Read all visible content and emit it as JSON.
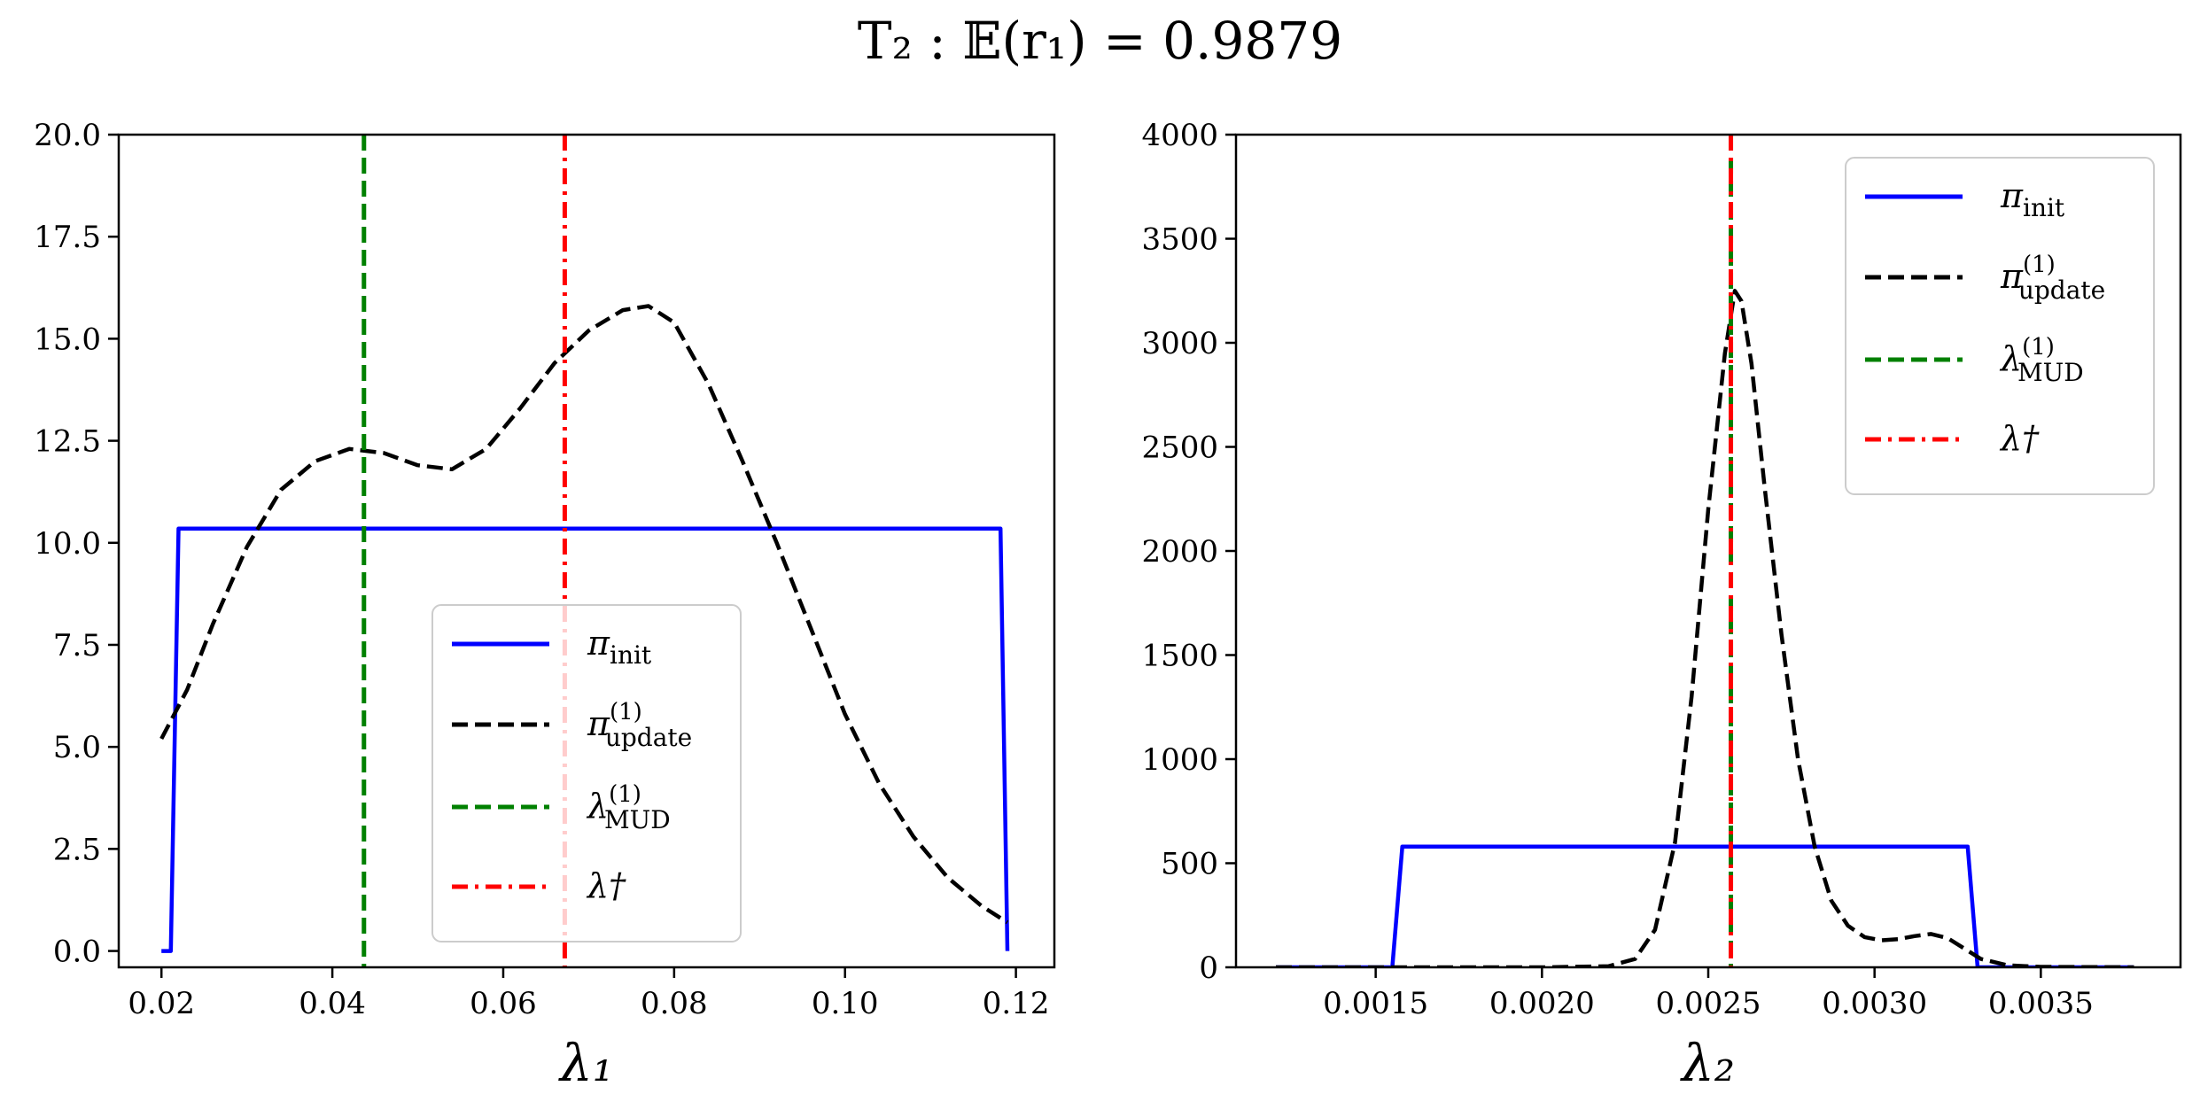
{
  "figure": {
    "title": "T₂ : 𝔼(r₁) = 0.9879"
  },
  "chart_data": [
    {
      "type": "line",
      "title": "",
      "xlabel": "λ₁",
      "ylabel": "",
      "xlim": [
        0.015,
        0.1245
      ],
      "ylim": [
        -0.4,
        20.0
      ],
      "xticks": [
        0.02,
        0.04,
        0.06,
        0.08,
        0.1,
        0.12
      ],
      "xtick_labels": [
        "0.02",
        "0.04",
        "0.06",
        "0.08",
        "0.10",
        "0.12"
      ],
      "yticks": [
        0.0,
        2.5,
        5.0,
        7.5,
        10.0,
        12.5,
        15.0,
        17.5,
        20.0
      ],
      "ytick_labels": [
        "0.0",
        "2.5",
        "5.0",
        "7.5",
        "10.0",
        "12.5",
        "15.0",
        "17.5",
        "20.0"
      ],
      "legend_position": "lower-center",
      "series": [
        {
          "name": "π_init",
          "style": "solid",
          "color": "#0000ff",
          "x": [
            0.02,
            0.0211,
            0.022,
            0.05,
            0.08,
            0.1182,
            0.119
          ],
          "y": [
            0.0,
            0.0,
            10.35,
            10.35,
            10.35,
            10.35,
            0.0
          ]
        },
        {
          "name": "π_update^(1)",
          "style": "dashed",
          "color": "#000000",
          "x": [
            0.02,
            0.023,
            0.026,
            0.03,
            0.034,
            0.038,
            0.042,
            0.046,
            0.05,
            0.054,
            0.058,
            0.062,
            0.066,
            0.07,
            0.074,
            0.077,
            0.08,
            0.084,
            0.088,
            0.092,
            0.096,
            0.1,
            0.104,
            0.108,
            0.112,
            0.116,
            0.119
          ],
          "y": [
            5.2,
            6.4,
            8.0,
            9.9,
            11.3,
            12.0,
            12.3,
            12.2,
            11.9,
            11.8,
            12.3,
            13.3,
            14.4,
            15.2,
            15.7,
            15.8,
            15.4,
            13.9,
            12.0,
            10.0,
            7.9,
            5.8,
            4.1,
            2.8,
            1.8,
            1.1,
            0.7
          ]
        },
        {
          "name": "λ_MUD^(1)",
          "style": "dashed",
          "color": "#008000",
          "vline_x": 0.0437
        },
        {
          "name": "λ†",
          "style": "dashdot",
          "color": "#ff0000",
          "vline_x": 0.0672
        }
      ]
    },
    {
      "type": "line",
      "title": "",
      "xlabel": "λ₂",
      "ylabel": "",
      "xlim": [
        0.00108,
        0.00392
      ],
      "ylim": [
        0,
        4000
      ],
      "xticks": [
        0.0015,
        0.002,
        0.0025,
        0.003,
        0.0035
      ],
      "xtick_labels": [
        "0.0015",
        "0.0020",
        "0.0025",
        "0.0030",
        "0.0035"
      ],
      "yticks": [
        0,
        500,
        1000,
        1500,
        2000,
        2500,
        3000,
        3500,
        4000
      ],
      "ytick_labels": [
        "0",
        "500",
        "1000",
        "1500",
        "2000",
        "2500",
        "3000",
        "3500",
        "4000"
      ],
      "legend_position": "upper-right",
      "series": [
        {
          "name": "π_init",
          "style": "solid",
          "color": "#0000ff",
          "x": [
            0.0012,
            0.00155,
            0.00158,
            0.0025,
            0.00328,
            0.00331,
            0.00378
          ],
          "y": [
            0,
            0,
            580,
            580,
            580,
            0,
            0
          ]
        },
        {
          "name": "π_update^(1)",
          "style": "dashed",
          "color": "#000000",
          "x": [
            0.0012,
            0.0015,
            0.002,
            0.0022,
            0.00228,
            0.00234,
            0.0024,
            0.00245,
            0.0025,
            0.00255,
            0.00258,
            0.0026,
            0.00263,
            0.00267,
            0.00272,
            0.00277,
            0.00282,
            0.00287,
            0.00292,
            0.00297,
            0.00302,
            0.00307,
            0.00312,
            0.00317,
            0.00322,
            0.00327,
            0.00332,
            0.0034,
            0.0035,
            0.00378
          ],
          "y": [
            0,
            0,
            0,
            5,
            40,
            180,
            600,
            1300,
            2200,
            2950,
            3250,
            3200,
            2900,
            2300,
            1600,
            1000,
            580,
            320,
            200,
            145,
            130,
            135,
            150,
            160,
            140,
            90,
            40,
            10,
            2,
            0
          ]
        },
        {
          "name": "λ_MUD^(1)",
          "style": "dashed",
          "color": "#008000",
          "vline_x": 0.002568
        },
        {
          "name": "λ†",
          "style": "dashdot",
          "color": "#ff0000",
          "vline_x": 0.002568
        }
      ]
    }
  ]
}
